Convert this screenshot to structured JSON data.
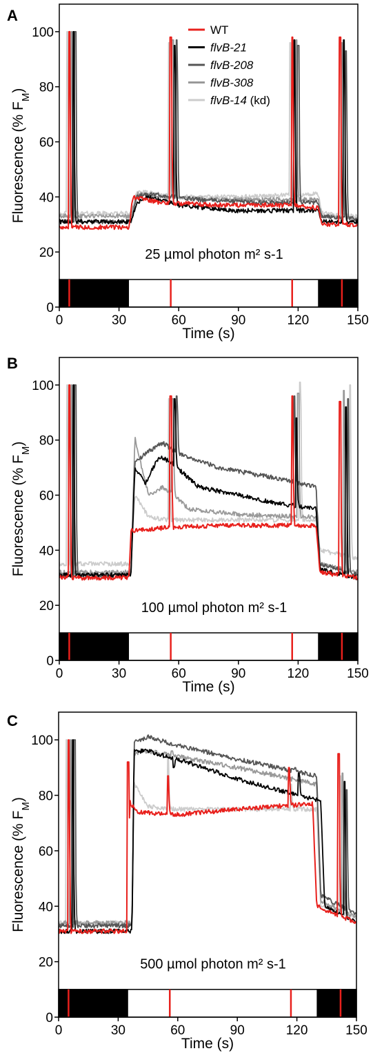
{
  "chart_data": [
    {
      "type": "line",
      "panel_label": "A",
      "xlabel": "Time (s)",
      "ylabel_parts": [
        "Fluorescence (% F",
        "M",
        ")"
      ],
      "xlim": [
        0,
        150
      ],
      "ylim": [
        0,
        110
      ],
      "xticks": [
        0,
        30,
        60,
        90,
        120,
        150
      ],
      "yticks": [
        0,
        20,
        40,
        60,
        80,
        100
      ],
      "annotation": "25 µmol photon m² s-1",
      "light_bar": {
        "dark_intervals": [
          [
            0,
            35
          ],
          [
            130,
            150
          ]
        ],
        "flash_times": [
          5,
          56,
          117,
          142
        ]
      },
      "legend": [
        "WT",
        "flvB-21",
        "flvB-208",
        "flvB-308",
        "flvB-14 (kd)"
      ],
      "series": [
        {
          "name": "WT",
          "color": "#e8201c",
          "levels": [
            [
              0,
              29
            ],
            [
              35,
              29
            ],
            [
              37,
              40
            ],
            [
              50,
              38
            ],
            [
              80,
              37
            ],
            [
              115,
              37
            ],
            [
              130,
              36
            ],
            [
              132,
              30
            ],
            [
              150,
              30
            ]
          ],
          "spikes": [
            [
              5,
              100
            ],
            [
              56,
              98
            ],
            [
              117,
              98
            ],
            [
              141,
              98
            ]
          ]
        },
        {
          "name": "flvB-21",
          "color": "#000000",
          "levels": [
            [
              0,
              31
            ],
            [
              36,
              31
            ],
            [
              39,
              38
            ],
            [
              45,
              40
            ],
            [
              60,
              37
            ],
            [
              90,
              35
            ],
            [
              130,
              35
            ],
            [
              132,
              31
            ],
            [
              150,
              31
            ]
          ],
          "spikes": [
            [
              7,
              100
            ],
            [
              58,
              95
            ],
            [
              118,
              97
            ],
            [
              143,
              97
            ]
          ]
        },
        {
          "name": "flvB-208",
          "color": "#555555",
          "levels": [
            [
              0,
              31
            ],
            [
              36,
              31
            ],
            [
              39,
              40
            ],
            [
              45,
              41
            ],
            [
              70,
              39
            ],
            [
              100,
              38
            ],
            [
              130,
              38
            ],
            [
              132,
              33
            ],
            [
              150,
              32
            ]
          ],
          "spikes": [
            [
              8,
              100
            ],
            [
              59,
              97
            ],
            [
              120,
              95
            ],
            [
              144,
              93
            ]
          ]
        },
        {
          "name": "flvB-308",
          "color": "#999999",
          "levels": [
            [
              0,
              33
            ],
            [
              36,
              33
            ],
            [
              39,
              41
            ],
            [
              50,
              40
            ],
            [
              80,
              39
            ],
            [
              130,
              39
            ],
            [
              132,
              33
            ],
            [
              150,
              32
            ]
          ],
          "spikes": [
            [
              6,
              100
            ],
            [
              57,
              97
            ],
            [
              119,
              97
            ],
            [
              142,
              96
            ]
          ]
        },
        {
          "name": "flvB-14 (kd)",
          "color": "#cccccc",
          "levels": [
            [
              0,
              34
            ],
            [
              36,
              34
            ],
            [
              39,
              42
            ],
            [
              60,
              40
            ],
            [
              90,
              40
            ],
            [
              130,
              41
            ],
            [
              132,
              34
            ],
            [
              150,
              33
            ]
          ],
          "spikes": [
            [
              4,
              100
            ],
            [
              55,
              96
            ],
            [
              116,
              96
            ],
            [
              141,
              96
            ]
          ]
        }
      ]
    },
    {
      "type": "line",
      "panel_label": "B",
      "xlabel": "Time (s)",
      "ylabel_parts": [
        "Fluorescence (% F",
        "M",
        ")"
      ],
      "xlim": [
        0,
        150
      ],
      "ylim": [
        0,
        110
      ],
      "xticks": [
        0,
        30,
        60,
        90,
        120,
        150
      ],
      "yticks": [
        0,
        20,
        40,
        60,
        80,
        100
      ],
      "annotation": "100 µmol photon m² s-1",
      "light_bar": {
        "dark_intervals": [
          [
            0,
            35
          ],
          [
            130,
            150
          ]
        ],
        "flash_times": [
          5,
          56,
          117,
          142
        ]
      },
      "legend": [],
      "series": [
        {
          "name": "WT",
          "color": "#e8201c",
          "levels": [
            [
              0,
              30
            ],
            [
              35,
              30
            ],
            [
              36,
              47
            ],
            [
              50,
              48
            ],
            [
              80,
              49
            ],
            [
              129,
              49
            ],
            [
              131,
              32
            ],
            [
              150,
              30
            ]
          ],
          "spikes": [
            [
              5,
              100
            ],
            [
              56,
              96
            ],
            [
              117,
              96
            ],
            [
              141,
              94
            ]
          ]
        },
        {
          "name": "flvB-21",
          "color": "#000000",
          "levels": [
            [
              0,
              31
            ],
            [
              36,
              31
            ],
            [
              38,
              70
            ],
            [
              40,
              68
            ],
            [
              43,
              64
            ],
            [
              50,
              74
            ],
            [
              56,
              72
            ],
            [
              70,
              63
            ],
            [
              90,
              60
            ],
            [
              110,
              57
            ],
            [
              129,
              55
            ],
            [
              131,
              33
            ],
            [
              150,
              30
            ]
          ],
          "spikes": [
            [
              7,
              100
            ],
            [
              58,
              95
            ],
            [
              119,
              88
            ],
            [
              144,
              92
            ]
          ]
        },
        {
          "name": "flvB-208",
          "color": "#555555",
          "levels": [
            [
              0,
              31
            ],
            [
              36,
              31
            ],
            [
              38,
              72
            ],
            [
              45,
              76
            ],
            [
              52,
              79
            ],
            [
              60,
              75
            ],
            [
              80,
              70
            ],
            [
              110,
              66
            ],
            [
              129,
              63
            ],
            [
              131,
              35
            ],
            [
              150,
              31
            ]
          ],
          "spikes": [
            [
              8,
              100
            ],
            [
              59,
              96
            ],
            [
              118,
              96
            ],
            [
              145,
              95
            ]
          ]
        },
        {
          "name": "flvB-308",
          "color": "#999999",
          "levels": [
            [
              0,
              32
            ],
            [
              36,
              32
            ],
            [
              38,
              81
            ],
            [
              40,
              74
            ],
            [
              45,
              60
            ],
            [
              52,
              63
            ],
            [
              56,
              61
            ],
            [
              65,
              55
            ],
            [
              90,
              53
            ],
            [
              129,
              52
            ],
            [
              131,
              35
            ],
            [
              150,
              32
            ]
          ],
          "spikes": [
            [
              6,
              100
            ],
            [
              57,
              95
            ],
            [
              120,
              97
            ],
            [
              143,
              98
            ]
          ]
        },
        {
          "name": "flvB-14 (kd)",
          "color": "#cccccc",
          "levels": [
            [
              0,
              35
            ],
            [
              36,
              35
            ],
            [
              38,
              60
            ],
            [
              45,
              52
            ],
            [
              55,
              51
            ],
            [
              90,
              51
            ],
            [
              129,
              51
            ],
            [
              131,
              40
            ],
            [
              150,
              37
            ]
          ],
          "spikes": [
            [
              4,
              100
            ],
            [
              55,
              95
            ],
            [
              121,
              101
            ],
            [
              146,
              100
            ]
          ]
        }
      ]
    },
    {
      "type": "line",
      "panel_label": "C",
      "xlabel": "Time (s)",
      "ylabel_parts": [
        "Fluorescence (% F",
        "M",
        ")"
      ],
      "xlim": [
        0,
        150
      ],
      "ylim": [
        0,
        110
      ],
      "xticks": [
        0,
        30,
        60,
        90,
        120,
        150
      ],
      "yticks": [
        0,
        20,
        40,
        60,
        80,
        100
      ],
      "annotation": "500 µmol photon m² s-1",
      "light_bar": {
        "dark_intervals": [
          [
            0,
            35
          ],
          [
            130,
            150
          ]
        ],
        "flash_times": [
          5,
          56,
          117,
          142
        ]
      },
      "legend": [],
      "series": [
        {
          "name": "WT",
          "color": "#e8201c",
          "levels": [
            [
              0,
              31
            ],
            [
              35,
              31
            ],
            [
              36,
              77
            ],
            [
              40,
              74
            ],
            [
              60,
              73
            ],
            [
              90,
              75
            ],
            [
              128,
              77
            ],
            [
              130,
              40
            ],
            [
              150,
              34
            ]
          ],
          "spikes": [
            [
              5,
              100
            ],
            [
              35,
              92
            ],
            [
              55,
              87
            ],
            [
              116,
              90
            ],
            [
              141,
              95
            ]
          ]
        },
        {
          "name": "flvB-21",
          "color": "#000000",
          "levels": [
            [
              0,
              31
            ],
            [
              37,
              31
            ],
            [
              38,
              96
            ],
            [
              45,
              96
            ],
            [
              60,
              93
            ],
            [
              90,
              86
            ],
            [
              120,
              80
            ],
            [
              132,
              78
            ],
            [
              134,
              40
            ],
            [
              150,
              34
            ]
          ],
          "spikes": [
            [
              7,
              100
            ],
            [
              58,
              90
            ],
            [
              121,
              88
            ],
            [
              144,
              85
            ]
          ]
        },
        {
          "name": "flvB-208",
          "color": "#555555",
          "levels": [
            [
              0,
              33
            ],
            [
              37,
              33
            ],
            [
              38,
              99
            ],
            [
              45,
              101
            ],
            [
              60,
              98
            ],
            [
              90,
              93
            ],
            [
              130,
              87
            ],
            [
              132,
              44
            ],
            [
              150,
              37
            ]
          ],
          "spikes": [
            [
              8,
              100
            ],
            [
              58,
              98
            ],
            [
              119,
              90
            ],
            [
              145,
              82
            ]
          ]
        },
        {
          "name": "flvB-308",
          "color": "#999999",
          "levels": [
            [
              0,
              34
            ],
            [
              37,
              34
            ],
            [
              38,
              95
            ],
            [
              45,
              96
            ],
            [
              60,
              94
            ],
            [
              90,
              90
            ],
            [
              130,
              84
            ],
            [
              132,
              42
            ],
            [
              150,
              36
            ]
          ],
          "spikes": [
            [
              6,
              100
            ],
            [
              57,
              96
            ],
            [
              118,
              86
            ],
            [
              143,
              88
            ]
          ]
        },
        {
          "name": "flvB-14 (kd)",
          "color": "#cccccc",
          "levels": [
            [
              0,
              34
            ],
            [
              37,
              34
            ],
            [
              38,
              84
            ],
            [
              45,
              76
            ],
            [
              60,
              75
            ],
            [
              90,
              75
            ],
            [
              130,
              75
            ],
            [
              132,
              40
            ],
            [
              150,
              36
            ]
          ],
          "spikes": [
            [
              4,
              100
            ],
            [
              55,
              94
            ],
            [
              117,
              84
            ],
            [
              142,
              87
            ]
          ]
        }
      ]
    }
  ]
}
